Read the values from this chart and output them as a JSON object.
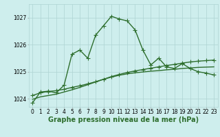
{
  "xlabel_label": "Graphe pression niveau de la mer (hPa)",
  "background_color": "#ceeeed",
  "grid_color": "#aed4d3",
  "line_color": "#2d6e2d",
  "ylim": [
    1023.7,
    1027.5
  ],
  "xlim": [
    -0.5,
    23.5
  ],
  "yticks": [
    1024,
    1025,
    1026,
    1027
  ],
  "xticks": [
    0,
    1,
    2,
    3,
    4,
    5,
    6,
    7,
    8,
    9,
    10,
    11,
    12,
    13,
    14,
    15,
    16,
    17,
    18,
    19,
    20,
    21,
    22,
    23
  ],
  "series1_x": [
    0,
    1,
    2,
    3,
    4,
    5,
    6,
    7,
    8,
    9,
    10,
    11,
    12,
    13,
    14,
    15,
    16,
    17,
    18,
    19,
    20,
    21,
    22,
    23
  ],
  "series1_y": [
    1023.85,
    1024.25,
    1024.28,
    1024.22,
    1024.5,
    1025.65,
    1025.8,
    1025.5,
    1026.35,
    1026.7,
    1027.05,
    1026.95,
    1026.88,
    1026.55,
    1025.8,
    1025.25,
    1025.5,
    1025.18,
    1025.12,
    1025.3,
    1025.12,
    1025.0,
    1024.95,
    1024.88
  ],
  "series2_x": [
    0,
    1,
    2,
    3,
    4,
    5,
    6,
    7,
    8,
    9,
    10,
    11,
    12,
    13,
    14,
    15,
    16,
    17,
    18,
    19,
    20,
    21,
    22,
    23
  ],
  "series2_y": [
    1024.12,
    1024.22,
    1024.27,
    1024.3,
    1024.35,
    1024.42,
    1024.48,
    1024.55,
    1024.63,
    1024.72,
    1024.82,
    1024.9,
    1024.97,
    1025.03,
    1025.08,
    1025.13,
    1025.18,
    1025.23,
    1025.27,
    1025.32,
    1025.36,
    1025.39,
    1025.41,
    1025.43
  ],
  "series3_x": [
    0,
    1,
    2,
    3,
    4,
    5,
    6,
    7,
    8,
    9,
    10,
    11,
    12,
    13,
    14,
    15,
    16,
    17,
    18,
    19,
    20,
    21,
    22,
    23
  ],
  "series3_y": [
    1023.98,
    1024.07,
    1024.12,
    1024.17,
    1024.25,
    1024.33,
    1024.42,
    1024.52,
    1024.62,
    1024.72,
    1024.8,
    1024.87,
    1024.92,
    1024.96,
    1024.99,
    1025.02,
    1025.04,
    1025.07,
    1025.09,
    1025.12,
    1025.14,
    1025.16,
    1025.17,
    1025.18
  ],
  "marker": "+",
  "markersize": 4,
  "linewidth": 1.0,
  "tick_fontsize": 5.5,
  "label_fontsize": 7.0,
  "label_fontweight": "bold"
}
